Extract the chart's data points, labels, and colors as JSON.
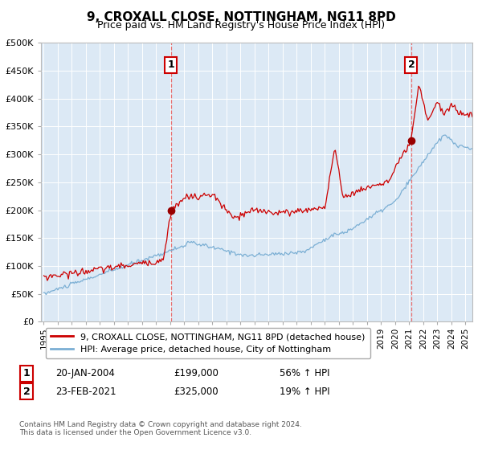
{
  "title": "9, CROXALL CLOSE, NOTTINGHAM, NG11 8PD",
  "subtitle": "Price paid vs. HM Land Registry's House Price Index (HPI)",
  "background_color": "#ffffff",
  "plot_bg_color": "#dce9f5",
  "red_line_color": "#cc0000",
  "blue_line_color": "#7bafd4",
  "marker_color": "#990000",
  "sale1_x": 2004.05,
  "sale1_y": 199000,
  "sale2_x": 2021.15,
  "sale2_y": 325000,
  "vline_color": "#e87070",
  "ylim": [
    0,
    500000
  ],
  "xlim_start": 1994.8,
  "xlim_end": 2025.5,
  "legend1": "9, CROXALL CLOSE, NOTTINGHAM, NG11 8PD (detached house)",
  "legend2": "HPI: Average price, detached house, City of Nottingham",
  "annotation1_label": "1",
  "annotation1_date": "20-JAN-2004",
  "annotation1_price": "£199,000",
  "annotation1_hpi": "56% ↑ HPI",
  "annotation2_label": "2",
  "annotation2_date": "23-FEB-2021",
  "annotation2_price": "£325,000",
  "annotation2_hpi": "19% ↑ HPI",
  "footnote": "Contains HM Land Registry data © Crown copyright and database right 2024.\nThis data is licensed under the Open Government Licence v3.0.",
  "xtick_years": [
    1995,
    1996,
    1997,
    1998,
    1999,
    2000,
    2001,
    2002,
    2003,
    2004,
    2005,
    2006,
    2007,
    2008,
    2009,
    2010,
    2011,
    2012,
    2013,
    2014,
    2015,
    2016,
    2017,
    2018,
    2019,
    2020,
    2021,
    2022,
    2023,
    2024,
    2025
  ]
}
